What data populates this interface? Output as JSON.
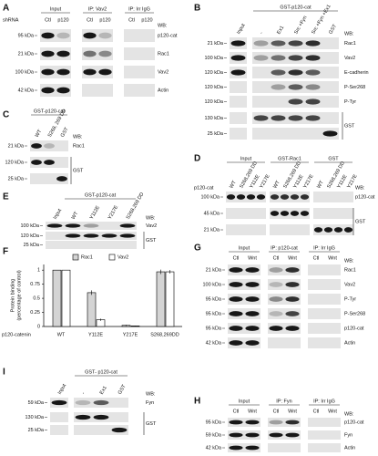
{
  "panel_a": {
    "label": "A",
    "lane_row_label": "shRNA",
    "groups": [
      {
        "title": "Input",
        "lanes": [
          "Ctl",
          "p120"
        ]
      },
      {
        "title": "IP: Vav2",
        "lanes": [
          "Ctl",
          "p120"
        ]
      },
      {
        "title": "IP: Irr IgG",
        "lanes": [
          "Ctl",
          "p120"
        ]
      }
    ],
    "markers": [
      "95 kDa",
      "21 kDa",
      "100 kDa",
      "42 kDa"
    ],
    "wb": "WB:",
    "blots": [
      "p120-cat",
      "Rac1",
      "Vav2",
      "Actin"
    ]
  },
  "panel_b": {
    "label": "B",
    "groups": [
      {
        "lanes": [
          "Input"
        ]
      },
      {
        "title": "GST-p120-cat",
        "lanes": [
          "-",
          "Ex1",
          "Src +Fyn",
          "Src +Fyn +Ex1",
          "GST"
        ]
      }
    ],
    "markers": [
      "21 kDa",
      "100 kDa",
      "120 kDa",
      "120 kDa",
      "120 kDa",
      "130 kDa",
      "25 kDa"
    ],
    "wb": "WB:",
    "blots": [
      "Rac1",
      "Vav2",
      "E-cadherin",
      "P-Ser268",
      "P-Tyr",
      "GST"
    ]
  },
  "panel_c": {
    "label": "C",
    "groups": [
      {
        "title": "GST-p120-cat",
        "lanes": [
          "WT",
          "S268, 269 DD",
          "GST"
        ]
      }
    ],
    "markers": [
      "21 kDa",
      "120 kDa",
      "25 kDa"
    ],
    "wb": "WB:",
    "blots": [
      "Rac1",
      "GST"
    ]
  },
  "panel_d": {
    "label": "D",
    "lane_row_label": "p120-cat",
    "groups": [
      {
        "title": "Input",
        "lanes": [
          "WT",
          "S268,269 DD",
          "Y112E",
          "Y217E"
        ]
      },
      {
        "title": "GST-Rac1",
        "lanes": [
          "WT",
          "S268,269 DD",
          "Y112E",
          "Y217E"
        ]
      },
      {
        "title": "GST",
        "lanes": [
          "WT",
          "S268,269 DD",
          "Y112E",
          "Y217E"
        ]
      }
    ],
    "markers": [
      "100 kDa",
      "45 kDa",
      "21 kDa"
    ],
    "wb": "WB:",
    "blots": [
      "p120-cat",
      "GST"
    ]
  },
  "panel_e": {
    "label": "E",
    "groups": [
      {
        "lanes": [
          "Input"
        ]
      },
      {
        "title": "GST-p120-cat",
        "lanes": [
          "WT",
          "Y112E",
          "Y217E",
          "S268,269 DD"
        ]
      }
    ],
    "markers": [
      "100 kDa",
      "120 kDa",
      "25 kDa"
    ],
    "wb": "WB:",
    "blots": [
      "Vav2",
      "GST"
    ]
  },
  "panel_f": {
    "label": "F",
    "chart_data": {
      "type": "bar",
      "y_label": [
        "Protein binding",
        "(percentage of control)"
      ],
      "x_label": "p120-catenin",
      "categories": [
        "WT",
        "Y112E",
        "Y217E",
        "S268,269DD"
      ],
      "series": [
        {
          "name": "Rac1",
          "color": "#d4d4d4",
          "values": [
            1,
            0.6,
            0.02,
            0.97
          ],
          "errors": [
            0,
            0.04,
            0.01,
            0.04
          ]
        },
        {
          "name": "Vav2",
          "color": "#ffffff",
          "values": [
            1,
            0.12,
            0.01,
            0.97
          ],
          "errors": [
            0,
            0.02,
            0.005,
            0.03
          ]
        }
      ],
      "ylim": [
        0,
        1.1
      ],
      "yticks": [
        0,
        0.25,
        0.5,
        0.75,
        1
      ]
    }
  },
  "panel_g": {
    "label": "G",
    "groups": [
      {
        "title": "Input",
        "lanes": [
          "Ctl",
          "Wnt"
        ]
      },
      {
        "title": "IP: p120-cat",
        "lanes": [
          "Ctl",
          "Wnt"
        ]
      },
      {
        "title": "IP: Irr IgG",
        "lanes": [
          "Ctl",
          "Wnt"
        ]
      }
    ],
    "markers": [
      "21 kDa",
      "100 kDa",
      "95 kDa",
      "95 kDa",
      "95 kDa",
      "42 kDa"
    ],
    "wb": "WB:",
    "blots": [
      "Rac1",
      "Vav2",
      "P-Tyr",
      "P-Ser268",
      "p120-cat",
      "Actin"
    ]
  },
  "panel_h": {
    "label": "H",
    "groups": [
      {
        "title": "Input",
        "lanes": [
          "Ctl",
          "Wnt"
        ]
      },
      {
        "title": "IP: Fyn",
        "lanes": [
          "Ctl",
          "Wnt"
        ]
      },
      {
        "title": "IP: Irr IgG",
        "lanes": [
          "Ctl",
          "Wnt"
        ]
      }
    ],
    "markers": [
      "95 kDa",
      "59 kDa",
      "42 kDa"
    ],
    "wb": "WB:",
    "blots": [
      "p120-cat",
      "Fyn",
      "Actin"
    ]
  },
  "panel_i": {
    "label": "I",
    "groups": [
      {
        "lanes": [
          "Input"
        ]
      },
      {
        "title": "GST- p120-cat",
        "lanes": [
          "-",
          "Ex1",
          "GST"
        ]
      }
    ],
    "markers": [
      "59 kDa",
      "130 kDa",
      "25 kDa"
    ],
    "wb": "WB:",
    "blots": [
      "Fyn",
      "GST"
    ]
  }
}
